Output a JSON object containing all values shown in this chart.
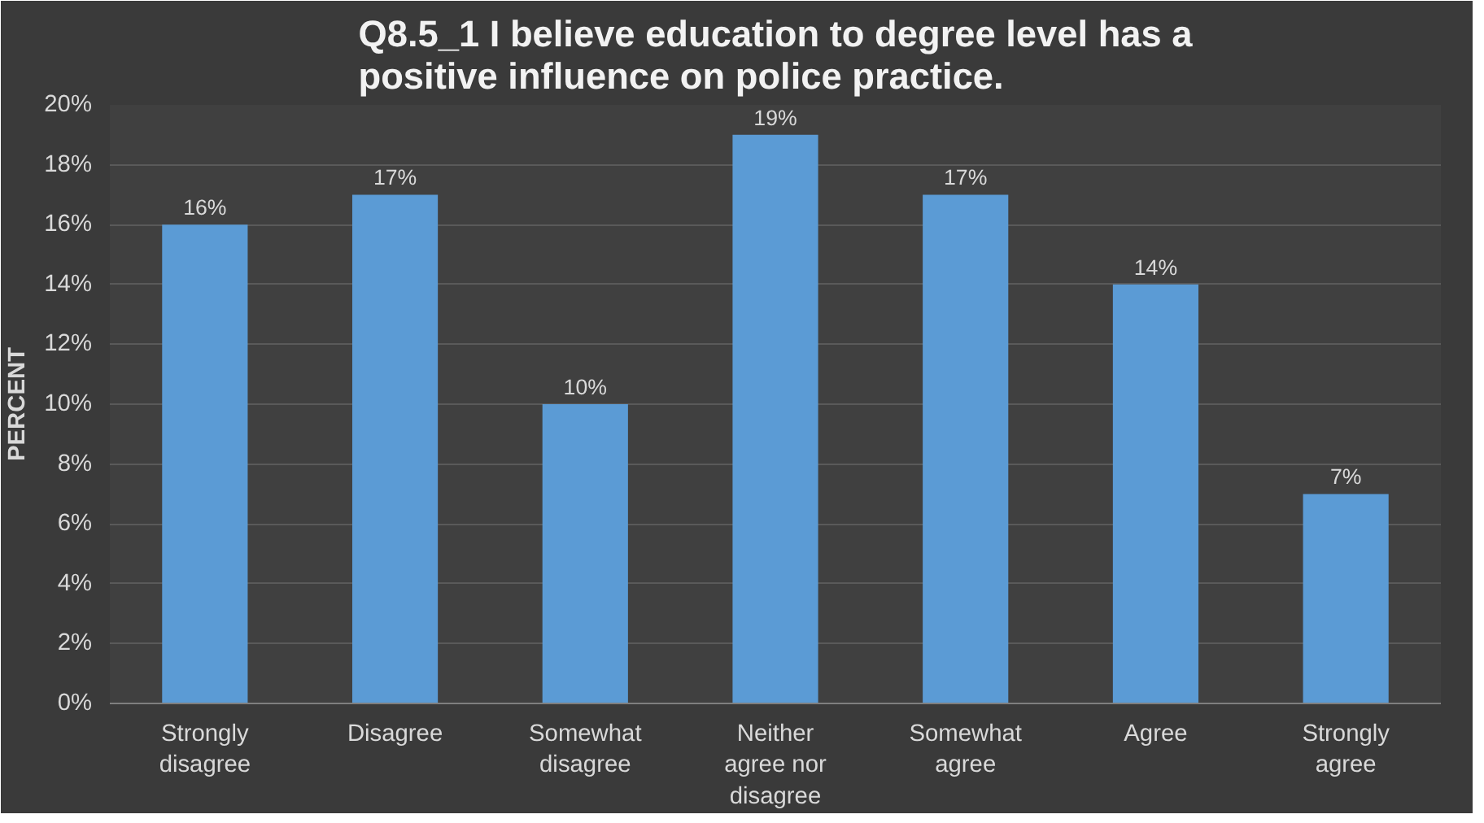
{
  "chart_data": {
    "type": "bar",
    "title": "Q8.5_1 I believe education to degree level has a positive influence on police practice.",
    "ylabel": "PERCENT",
    "categories": [
      "Strongly disagree",
      "Disagree",
      "Somewhat disagree",
      "Neither agree nor disagree",
      "Somewhat agree",
      "Agree",
      "Strongly agree"
    ],
    "values": [
      16,
      17,
      10,
      19,
      17,
      14,
      7
    ],
    "value_labels": [
      "16%",
      "17%",
      "10%",
      "19%",
      "17%",
      "14%",
      "7%"
    ],
    "color": "#5b9bd5",
    "ylim": [
      0,
      20
    ],
    "yticks": [
      {
        "value": 0,
        "label": "0%"
      },
      {
        "value": 2,
        "label": "2%"
      },
      {
        "value": 4,
        "label": "4%"
      },
      {
        "value": 6,
        "label": "6%"
      },
      {
        "value": 8,
        "label": "8%"
      },
      {
        "value": 10,
        "label": "10%"
      },
      {
        "value": 12,
        "label": "12%"
      },
      {
        "value": 14,
        "label": "14%"
      },
      {
        "value": 16,
        "label": "16%"
      },
      {
        "value": 18,
        "label": "18%"
      },
      {
        "value": 20,
        "label": "20%"
      }
    ],
    "grid": "y"
  }
}
